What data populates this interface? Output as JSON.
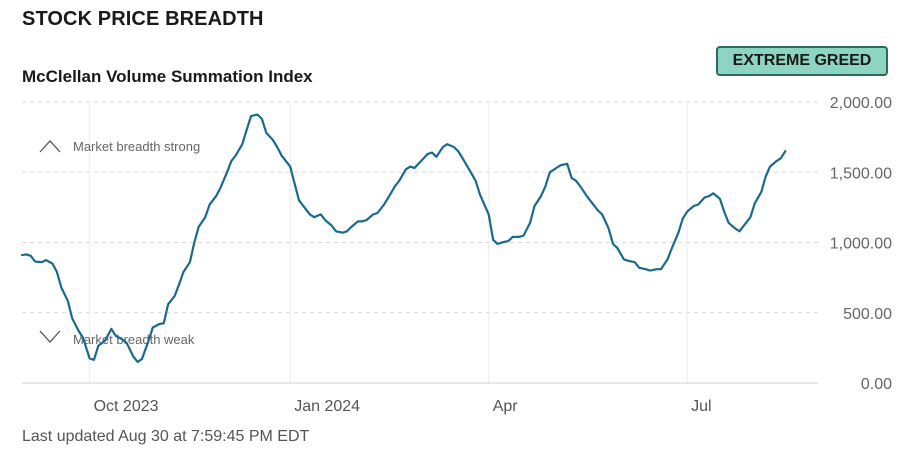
{
  "header": {
    "title": "STOCK PRICE BREADTH",
    "subtitle": "McClellan Volume Summation Index",
    "rating": "EXTREME GREED"
  },
  "footer": {
    "last_updated": "Last updated Aug 30 at 7:59:45 PM EDT"
  },
  "colors": {
    "line": "#1a6a8d",
    "badge_bg": "#8ed4c3",
    "badge_border": "#2d6b5d",
    "grid": "#d8d8d8",
    "text_muted": "#666666"
  },
  "chart_data": {
    "type": "line",
    "title": "McClellan Volume Summation Index",
    "xlabel": "",
    "ylabel": "",
    "x_range": [
      "2023-08-31",
      "2024-08-30"
    ],
    "ylim": [
      0,
      2000
    ],
    "y_ticks": [
      0,
      500,
      1000,
      1500,
      2000
    ],
    "y_tick_labels": [
      "0.00",
      "500.00",
      "1,000.00",
      "1,500.00",
      "2,000.00"
    ],
    "x_ticks": [
      {
        "date": "2023-10-01",
        "label": "Oct 2023"
      },
      {
        "date": "2024-01-01",
        "label": "Jan 2024"
      },
      {
        "date": "2024-04-01",
        "label": "Apr"
      },
      {
        "date": "2024-07-01",
        "label": "Jul"
      }
    ],
    "grid": "horizontal dashed, vertical at month ticks",
    "annotations": [
      {
        "text": "Market breadth strong",
        "icon": "chevron-up-icon"
      },
      {
        "text": "Market breadth weak",
        "icon": "chevron-down-icon"
      }
    ],
    "series": [
      {
        "points": [
          [
            "2023-08-31",
            910
          ],
          [
            "2023-09-02",
            915
          ],
          [
            "2023-09-04",
            905
          ],
          [
            "2023-09-06",
            865
          ],
          [
            "2023-09-09",
            860
          ],
          [
            "2023-09-11",
            875
          ],
          [
            "2023-09-14",
            850
          ],
          [
            "2023-09-16",
            790
          ],
          [
            "2023-09-18",
            680
          ],
          [
            "2023-09-21",
            585
          ],
          [
            "2023-09-23",
            460
          ],
          [
            "2023-09-26",
            370
          ],
          [
            "2023-09-28",
            320
          ],
          [
            "2023-10-01",
            175
          ],
          [
            "2023-10-03",
            165
          ],
          [
            "2023-10-05",
            265
          ],
          [
            "2023-10-08",
            300
          ],
          [
            "2023-10-11",
            385
          ],
          [
            "2023-10-13",
            335
          ],
          [
            "2023-10-16",
            310
          ],
          [
            "2023-10-18",
            285
          ],
          [
            "2023-10-21",
            190
          ],
          [
            "2023-10-23",
            150
          ],
          [
            "2023-10-25",
            170
          ],
          [
            "2023-10-28",
            300
          ],
          [
            "2023-10-30",
            395
          ],
          [
            "2023-11-02",
            420
          ],
          [
            "2023-11-04",
            425
          ],
          [
            "2023-11-06",
            560
          ],
          [
            "2023-11-09",
            620
          ],
          [
            "2023-11-11",
            700
          ],
          [
            "2023-11-13",
            790
          ],
          [
            "2023-11-16",
            860
          ],
          [
            "2023-11-18",
            1000
          ],
          [
            "2023-11-20",
            1110
          ],
          [
            "2023-11-23",
            1180
          ],
          [
            "2023-11-25",
            1270
          ],
          [
            "2023-11-28",
            1330
          ],
          [
            "2023-11-30",
            1390
          ],
          [
            "2023-12-03",
            1500
          ],
          [
            "2023-12-05",
            1580
          ],
          [
            "2023-12-07",
            1620
          ],
          [
            "2023-12-10",
            1700
          ],
          [
            "2023-12-12",
            1800
          ],
          [
            "2023-12-14",
            1900
          ],
          [
            "2023-12-17",
            1910
          ],
          [
            "2023-12-19",
            1880
          ],
          [
            "2023-12-21",
            1780
          ],
          [
            "2023-12-24",
            1730
          ],
          [
            "2023-12-26",
            1680
          ],
          [
            "2023-12-28",
            1620
          ],
          [
            "2024-01-01",
            1540
          ],
          [
            "2024-01-03",
            1420
          ],
          [
            "2024-01-05",
            1300
          ],
          [
            "2024-01-08",
            1240
          ],
          [
            "2024-01-10",
            1200
          ],
          [
            "2024-01-12",
            1180
          ],
          [
            "2024-01-15",
            1200
          ],
          [
            "2024-01-17",
            1160
          ],
          [
            "2024-01-20",
            1120
          ],
          [
            "2024-01-22",
            1080
          ],
          [
            "2024-01-25",
            1070
          ],
          [
            "2024-01-27",
            1080
          ],
          [
            "2024-01-29",
            1110
          ],
          [
            "2024-02-01",
            1150
          ],
          [
            "2024-02-03",
            1150
          ],
          [
            "2024-02-05",
            1160
          ],
          [
            "2024-02-08",
            1200
          ],
          [
            "2024-02-10",
            1210
          ],
          [
            "2024-02-13",
            1270
          ],
          [
            "2024-02-15",
            1320
          ],
          [
            "2024-02-18",
            1400
          ],
          [
            "2024-02-20",
            1440
          ],
          [
            "2024-02-23",
            1520
          ],
          [
            "2024-02-25",
            1540
          ],
          [
            "2024-02-27",
            1530
          ],
          [
            "2024-03-01",
            1580
          ],
          [
            "2024-03-04",
            1630
          ],
          [
            "2024-03-06",
            1640
          ],
          [
            "2024-03-08",
            1610
          ],
          [
            "2024-03-11",
            1680
          ],
          [
            "2024-03-13",
            1700
          ],
          [
            "2024-03-16",
            1680
          ],
          [
            "2024-03-18",
            1650
          ],
          [
            "2024-03-20",
            1600
          ],
          [
            "2024-03-23",
            1520
          ],
          [
            "2024-03-26",
            1440
          ],
          [
            "2024-03-28",
            1340
          ],
          [
            "2024-04-01",
            1200
          ],
          [
            "2024-04-03",
            1020
          ],
          [
            "2024-04-05",
            990
          ],
          [
            "2024-04-07",
            1000
          ],
          [
            "2024-04-10",
            1010
          ],
          [
            "2024-04-12",
            1040
          ],
          [
            "2024-04-15",
            1040
          ],
          [
            "2024-04-17",
            1050
          ],
          [
            "2024-04-20",
            1140
          ],
          [
            "2024-04-22",
            1260
          ],
          [
            "2024-04-25",
            1330
          ],
          [
            "2024-04-27",
            1400
          ],
          [
            "2024-04-29",
            1500
          ],
          [
            "2024-05-02",
            1530
          ],
          [
            "2024-05-04",
            1550
          ],
          [
            "2024-05-07",
            1560
          ],
          [
            "2024-05-09",
            1460
          ],
          [
            "2024-05-11",
            1440
          ],
          [
            "2024-05-13",
            1400
          ],
          [
            "2024-05-16",
            1330
          ],
          [
            "2024-05-18",
            1290
          ],
          [
            "2024-05-21",
            1230
          ],
          [
            "2024-05-23",
            1200
          ],
          [
            "2024-05-26",
            1100
          ],
          [
            "2024-05-28",
            990
          ],
          [
            "2024-05-30",
            960
          ],
          [
            "2024-06-02",
            880
          ],
          [
            "2024-06-04",
            870
          ],
          [
            "2024-06-07",
            860
          ],
          [
            "2024-06-09",
            820
          ],
          [
            "2024-06-12",
            810
          ],
          [
            "2024-06-14",
            800
          ],
          [
            "2024-06-17",
            810
          ],
          [
            "2024-06-19",
            810
          ],
          [
            "2024-06-22",
            880
          ],
          [
            "2024-06-24",
            960
          ],
          [
            "2024-06-27",
            1070
          ],
          [
            "2024-06-29",
            1170
          ],
          [
            "2024-07-01",
            1220
          ],
          [
            "2024-07-04",
            1260
          ],
          [
            "2024-07-06",
            1270
          ],
          [
            "2024-07-09",
            1320
          ],
          [
            "2024-07-11",
            1330
          ],
          [
            "2024-07-13",
            1350
          ],
          [
            "2024-07-16",
            1310
          ],
          [
            "2024-07-18",
            1220
          ],
          [
            "2024-07-20",
            1140
          ],
          [
            "2024-07-23",
            1100
          ],
          [
            "2024-07-25",
            1080
          ],
          [
            "2024-07-27",
            1120
          ],
          [
            "2024-07-30",
            1180
          ],
          [
            "2024-08-01",
            1280
          ],
          [
            "2024-08-04",
            1360
          ],
          [
            "2024-08-06",
            1470
          ],
          [
            "2024-08-08",
            1540
          ],
          [
            "2024-08-11",
            1580
          ],
          [
            "2024-08-13",
            1600
          ],
          [
            "2024-08-15",
            1650
          ]
        ]
      }
    ]
  }
}
